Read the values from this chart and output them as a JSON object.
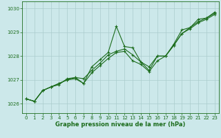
{
  "title": "Graphe pression niveau de la mer (hPa)",
  "bg_color": "#cce8ea",
  "grid_color": "#aacccc",
  "line_color": "#1a6b1a",
  "xlim": [
    -0.5,
    23.5
  ],
  "ylim": [
    1025.6,
    1030.3
  ],
  "xticks": [
    0,
    1,
    2,
    3,
    4,
    5,
    6,
    7,
    8,
    9,
    10,
    11,
    12,
    13,
    14,
    15,
    16,
    17,
    18,
    19,
    20,
    21,
    22,
    23
  ],
  "yticks": [
    1026,
    1027,
    1028,
    1029,
    1030
  ],
  "y_series1": [
    1026.2,
    1026.1,
    1026.55,
    1026.7,
    1026.8,
    1027.05,
    1027.1,
    1026.85,
    1027.55,
    1027.85,
    1028.15,
    1029.25,
    1028.4,
    1028.35,
    1027.75,
    1027.4,
    1028.0,
    1028.0,
    1028.5,
    1029.1,
    1029.2,
    1029.55,
    1029.6,
    1029.8
  ],
  "y_series2": [
    1026.2,
    1026.1,
    1026.55,
    1026.7,
    1026.85,
    1027.0,
    1027.05,
    1026.85,
    1027.3,
    1027.6,
    1027.9,
    1028.15,
    1028.2,
    1027.8,
    1027.65,
    1027.35,
    1027.8,
    1028.0,
    1028.45,
    1028.95,
    1029.15,
    1029.4,
    1029.55,
    1029.75
  ],
  "y_series3": [
    1026.2,
    1026.1,
    1026.55,
    1026.7,
    1026.85,
    1027.0,
    1027.1,
    1027.05,
    1027.4,
    1027.7,
    1028.05,
    1028.2,
    1028.3,
    1028.05,
    1027.75,
    1027.55,
    1028.0,
    1028.0,
    1028.45,
    1028.95,
    1029.2,
    1029.45,
    1029.6,
    1029.85
  ],
  "tick_fontsize": 5.0,
  "label_fontsize": 6.0
}
